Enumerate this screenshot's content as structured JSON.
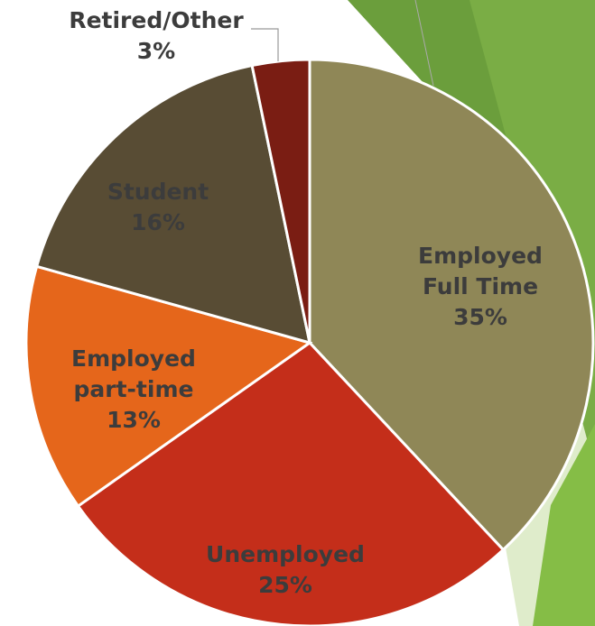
{
  "chart_data": {
    "type": "pie",
    "categories": [
      "Employed Full Time",
      "Unemployed",
      "Employed part-time",
      "Student",
      "Retired/Other"
    ],
    "values": [
      35,
      25,
      13,
      16,
      3
    ],
    "value_labels": [
      "35%",
      "25%",
      "13%",
      "16%",
      "3%"
    ],
    "colors": [
      "#8f8757",
      "#c42e1a",
      "#e5661b",
      "#584c34",
      "#7a1d13"
    ]
  }
}
